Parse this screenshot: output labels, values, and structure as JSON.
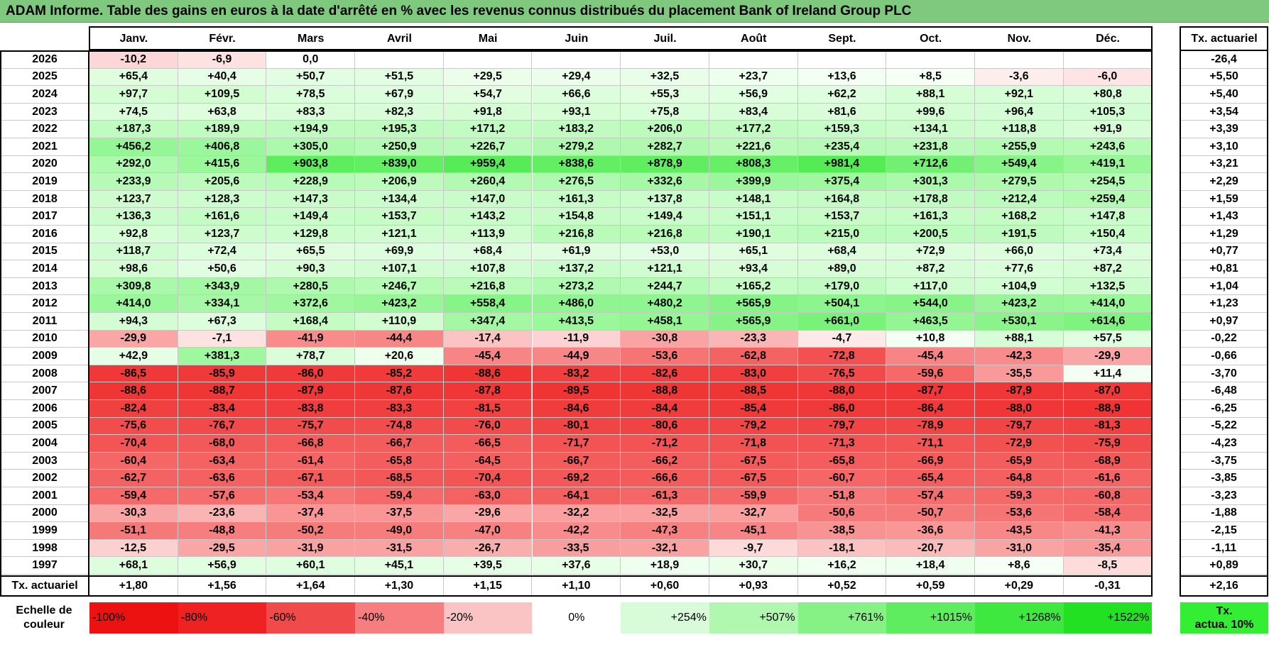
{
  "title": "ADAM Informe. Table des gains en euros à la date d'arrêté en % avec les revenus connus distribués du placement Bank of Ireland Group PLC",
  "months": [
    "Janv.",
    "Févr.",
    "Mars",
    "Avril",
    "Mai",
    "Juin",
    "Juil.",
    "Août",
    "Sept.",
    "Oct.",
    "Nov.",
    "Déc."
  ],
  "rate_header": "Tx. actuariel",
  "rows": [
    {
      "year": "2026",
      "values": [
        "-10,2",
        "-6,9",
        "0,0",
        "",
        "",
        "",
        "",
        "",
        "",
        "",
        "",
        ""
      ],
      "rate": "-26,4"
    },
    {
      "year": "2025",
      "values": [
        "+65,4",
        "+40,4",
        "+50,7",
        "+51,5",
        "+29,5",
        "+29,4",
        "+32,5",
        "+23,7",
        "+13,6",
        "+8,5",
        "-3,6",
        "-6,0"
      ],
      "rate": "+5,50"
    },
    {
      "year": "2024",
      "values": [
        "+97,7",
        "+109,5",
        "+78,5",
        "+67,9",
        "+54,7",
        "+66,6",
        "+55,3",
        "+56,9",
        "+62,2",
        "+88,1",
        "+92,1",
        "+80,8"
      ],
      "rate": "+5,40"
    },
    {
      "year": "2023",
      "values": [
        "+74,5",
        "+63,8",
        "+83,3",
        "+82,3",
        "+91,8",
        "+93,1",
        "+75,8",
        "+83,4",
        "+81,6",
        "+99,6",
        "+96,4",
        "+105,3"
      ],
      "rate": "+3,54"
    },
    {
      "year": "2022",
      "values": [
        "+187,3",
        "+189,9",
        "+194,9",
        "+195,3",
        "+171,2",
        "+183,2",
        "+206,0",
        "+177,2",
        "+159,3",
        "+134,1",
        "+118,8",
        "+91,9"
      ],
      "rate": "+3,39"
    },
    {
      "year": "2021",
      "values": [
        "+456,2",
        "+406,8",
        "+305,0",
        "+250,9",
        "+226,7",
        "+279,2",
        "+282,7",
        "+221,6",
        "+235,4",
        "+231,8",
        "+255,9",
        "+243,6"
      ],
      "rate": "+3,10"
    },
    {
      "year": "2020",
      "values": [
        "+292,0",
        "+415,6",
        "+903,8",
        "+839,0",
        "+959,4",
        "+838,6",
        "+878,9",
        "+808,3",
        "+981,4",
        "+712,6",
        "+549,4",
        "+419,1"
      ],
      "rate": "+3,21"
    },
    {
      "year": "2019",
      "values": [
        "+233,9",
        "+205,6",
        "+228,9",
        "+206,9",
        "+260,4",
        "+276,5",
        "+332,6",
        "+399,9",
        "+375,4",
        "+301,3",
        "+279,5",
        "+254,5"
      ],
      "rate": "+2,29"
    },
    {
      "year": "2018",
      "values": [
        "+123,7",
        "+128,3",
        "+147,3",
        "+134,4",
        "+147,0",
        "+161,3",
        "+137,8",
        "+148,1",
        "+164,8",
        "+178,8",
        "+212,4",
        "+259,4"
      ],
      "rate": "+1,59"
    },
    {
      "year": "2017",
      "values": [
        "+136,3",
        "+161,6",
        "+149,4",
        "+153,7",
        "+143,2",
        "+154,8",
        "+149,4",
        "+151,1",
        "+153,7",
        "+161,3",
        "+168,2",
        "+147,8"
      ],
      "rate": "+1,43"
    },
    {
      "year": "2016",
      "values": [
        "+92,8",
        "+123,7",
        "+129,8",
        "+121,1",
        "+113,9",
        "+216,8",
        "+216,8",
        "+190,1",
        "+215,0",
        "+200,5",
        "+191,5",
        "+150,4"
      ],
      "rate": "+1,29"
    },
    {
      "year": "2015",
      "values": [
        "+118,7",
        "+72,4",
        "+65,5",
        "+69,9",
        "+68,4",
        "+61,9",
        "+53,0",
        "+65,1",
        "+68,4",
        "+72,9",
        "+66,0",
        "+73,4"
      ],
      "rate": "+0,77"
    },
    {
      "year": "2014",
      "values": [
        "+98,6",
        "+50,6",
        "+90,3",
        "+107,1",
        "+107,8",
        "+137,2",
        "+121,1",
        "+93,4",
        "+89,0",
        "+87,2",
        "+77,6",
        "+87,2"
      ],
      "rate": "+0,81"
    },
    {
      "year": "2013",
      "values": [
        "+309,8",
        "+343,9",
        "+280,5",
        "+246,7",
        "+216,8",
        "+273,2",
        "+244,7",
        "+165,2",
        "+179,0",
        "+117,0",
        "+104,9",
        "+132,5"
      ],
      "rate": "+1,04"
    },
    {
      "year": "2012",
      "values": [
        "+414,0",
        "+334,1",
        "+372,6",
        "+423,2",
        "+558,4",
        "+486,0",
        "+480,2",
        "+565,9",
        "+504,1",
        "+544,0",
        "+423,2",
        "+414,0"
      ],
      "rate": "+1,23"
    },
    {
      "year": "2011",
      "values": [
        "+94,3",
        "+67,3",
        "+168,4",
        "+110,9",
        "+347,4",
        "+413,5",
        "+458,1",
        "+565,9",
        "+661,0",
        "+463,5",
        "+530,1",
        "+614,6"
      ],
      "rate": "+0,97"
    },
    {
      "year": "2010",
      "values": [
        "-29,9",
        "-7,1",
        "-41,9",
        "-44,4",
        "-17,4",
        "-11,9",
        "-30,8",
        "-23,3",
        "-4,7",
        "+10,8",
        "+88,1",
        "+57,5"
      ],
      "rate": "-0,22"
    },
    {
      "year": "2009",
      "values": [
        "+42,9",
        "+381,3",
        "+78,7",
        "+20,6",
        "-45,4",
        "-44,9",
        "-53,6",
        "-62,8",
        "-72,8",
        "-45,4",
        "-42,3",
        "-29,9"
      ],
      "rate": "-0,66"
    },
    {
      "year": "2008",
      "values": [
        "-86,5",
        "-85,9",
        "-86,0",
        "-85,2",
        "-88,6",
        "-83,2",
        "-82,6",
        "-83,0",
        "-76,5",
        "-59,6",
        "-35,5",
        "+11,4"
      ],
      "rate": "-3,70"
    },
    {
      "year": "2007",
      "values": [
        "-88,6",
        "-88,7",
        "-87,9",
        "-87,6",
        "-87,8",
        "-89,5",
        "-88,8",
        "-88,5",
        "-88,0",
        "-87,7",
        "-87,9",
        "-87,0"
      ],
      "rate": "-6,48"
    },
    {
      "year": "2006",
      "values": [
        "-82,4",
        "-83,4",
        "-83,8",
        "-83,3",
        "-81,5",
        "-84,6",
        "-84,4",
        "-85,4",
        "-86,0",
        "-86,4",
        "-88,0",
        "-88,9"
      ],
      "rate": "-6,25"
    },
    {
      "year": "2005",
      "values": [
        "-75,6",
        "-76,7",
        "-75,7",
        "-74,8",
        "-76,0",
        "-80,1",
        "-80,6",
        "-79,2",
        "-79,7",
        "-78,9",
        "-79,7",
        "-81,3"
      ],
      "rate": "-5,22"
    },
    {
      "year": "2004",
      "values": [
        "-70,4",
        "-68,0",
        "-66,8",
        "-66,7",
        "-66,5",
        "-71,7",
        "-71,2",
        "-71,8",
        "-71,3",
        "-71,1",
        "-72,9",
        "-75,9"
      ],
      "rate": "-4,23"
    },
    {
      "year": "2003",
      "values": [
        "-60,4",
        "-63,4",
        "-61,4",
        "-65,8",
        "-64,5",
        "-66,7",
        "-66,2",
        "-67,5",
        "-65,8",
        "-66,9",
        "-65,9",
        "-68,9"
      ],
      "rate": "-3,75"
    },
    {
      "year": "2002",
      "values": [
        "-62,7",
        "-63,6",
        "-67,1",
        "-68,5",
        "-70,4",
        "-69,2",
        "-66,6",
        "-67,5",
        "-60,7",
        "-65,4",
        "-64,8",
        "-61,6"
      ],
      "rate": "-3,85"
    },
    {
      "year": "2001",
      "values": [
        "-59,4",
        "-57,6",
        "-53,4",
        "-59,4",
        "-63,0",
        "-64,1",
        "-61,3",
        "-59,9",
        "-51,8",
        "-57,4",
        "-59,3",
        "-60,8"
      ],
      "rate": "-3,23"
    },
    {
      "year": "2000",
      "values": [
        "-30,3",
        "-23,6",
        "-37,4",
        "-37,5",
        "-29,6",
        "-32,2",
        "-32,5",
        "-32,7",
        "-50,6",
        "-50,7",
        "-53,6",
        "-58,4"
      ],
      "rate": "-1,88"
    },
    {
      "year": "1999",
      "values": [
        "-51,1",
        "-48,8",
        "-50,2",
        "-49,0",
        "-47,0",
        "-42,2",
        "-47,3",
        "-45,1",
        "-38,5",
        "-36,6",
        "-43,5",
        "-41,3"
      ],
      "rate": "-2,15"
    },
    {
      "year": "1998",
      "values": [
        "-12,5",
        "-29,5",
        "-31,9",
        "-31,5",
        "-26,7",
        "-33,5",
        "-32,1",
        "-9,7",
        "-18,1",
        "-20,7",
        "-31,0",
        "-35,4"
      ],
      "rate": "-1,11"
    },
    {
      "year": "1997",
      "values": [
        "+68,1",
        "+56,9",
        "+60,1",
        "+45,1",
        "+39,5",
        "+37,6",
        "+18,9",
        "+30,7",
        "+16,2",
        "+18,4",
        "+8,6",
        "-8,5"
      ],
      "rate": "+0,89"
    }
  ],
  "footer_row": {
    "label": "Tx. actuariel",
    "values": [
      "+1,80",
      "+1,56",
      "+1,64",
      "+1,30",
      "+1,15",
      "+1,10",
      "+0,60",
      "+0,93",
      "+0,52",
      "+0,59",
      "+0,29",
      "-0,31"
    ],
    "rate": "+2,16"
  },
  "legend": {
    "label_line1": "Echelle de",
    "label_line2": "couleur",
    "items": [
      {
        "text": "-100%",
        "color": "#ee1111"
      },
      {
        "text": "-80%",
        "color": "#ee2222"
      },
      {
        "text": "-60%",
        "color": "#f04a4a"
      },
      {
        "text": "-40%",
        "color": "#f67e7e"
      },
      {
        "text": "-20%",
        "color": "#fbc4c4"
      },
      {
        "text": "0%",
        "color": "#ffffff"
      },
      {
        "text": "+254%",
        "color": "#d8fbd8"
      },
      {
        "text": "+507%",
        "color": "#b0f7b0"
      },
      {
        "text": "+761%",
        "color": "#86f286"
      },
      {
        "text": "+1015%",
        "color": "#5eed5e"
      },
      {
        "text": "+1268%",
        "color": "#3fe83f"
      },
      {
        "text": "+1522%",
        "color": "#22e022"
      }
    ],
    "rate_line1": "Tx.",
    "rate_line2": "actua. 10%",
    "rate_color": "#33ee33"
  }
}
